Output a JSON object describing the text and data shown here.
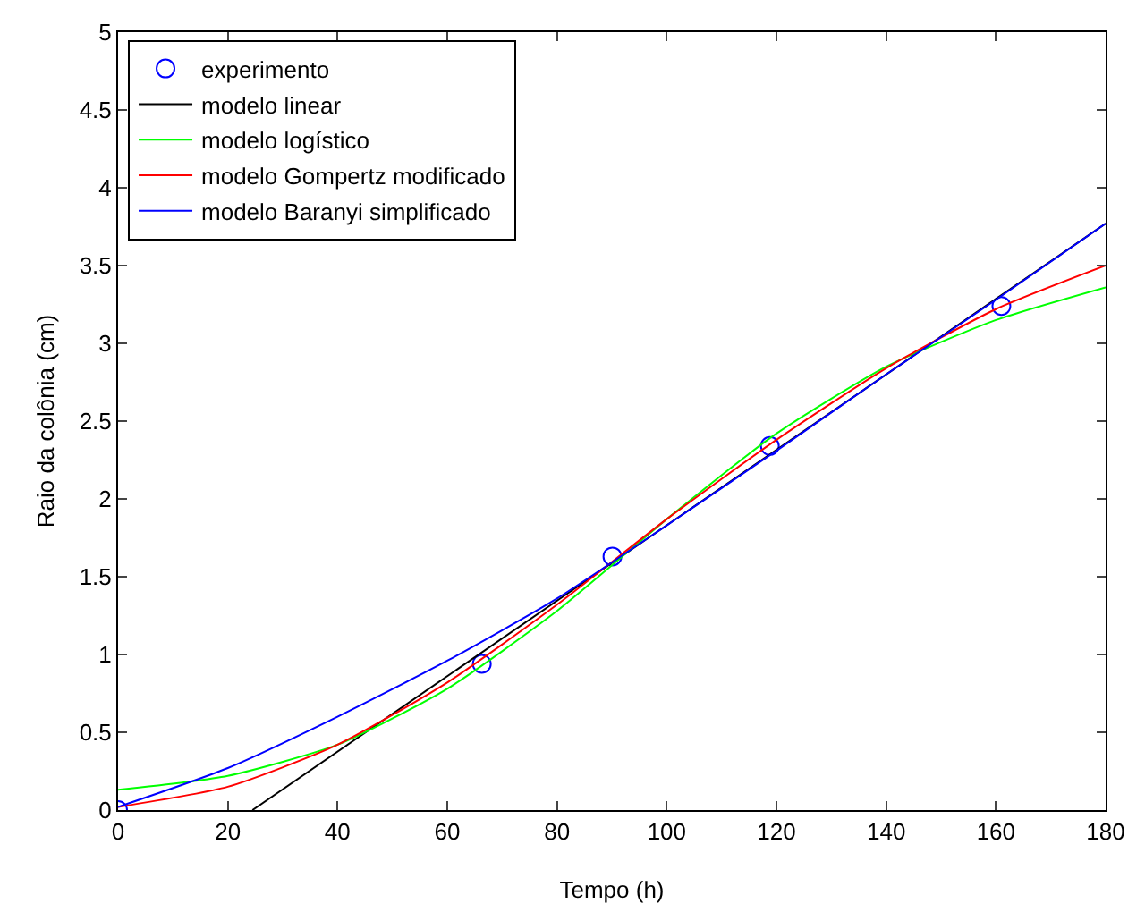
{
  "chart_data": {
    "type": "line",
    "xlabel": "Tempo (h)",
    "ylabel": "Raio da colônia (cm)",
    "xlim": [
      0,
      180
    ],
    "ylim": [
      0,
      5
    ],
    "xticks": [
      0,
      20,
      40,
      60,
      80,
      100,
      120,
      140,
      160,
      180
    ],
    "yticks": [
      0,
      0.5,
      1,
      1.5,
      2,
      2.5,
      3,
      3.5,
      4,
      4.5,
      5
    ],
    "grid": false,
    "legend": "top left",
    "series": [
      {
        "name": "experimento",
        "type": "scatter",
        "marker": "circle",
        "color": "#0000ff",
        "x": [
          0,
          66.3,
          90.1,
          118.8,
          161
        ],
        "values": [
          0,
          0.94,
          1.63,
          2.34,
          3.24
        ]
      },
      {
        "name": "modelo linear",
        "color": "#000000",
        "x": [
          24.5,
          180
        ],
        "values": [
          0,
          3.77
        ]
      },
      {
        "name": "modelo logístico",
        "color": "#00ff00",
        "x": [
          0,
          20,
          40,
          60,
          80,
          100,
          120,
          140,
          160,
          180
        ],
        "values": [
          0.13,
          0.22,
          0.42,
          0.78,
          1.28,
          1.87,
          2.42,
          2.85,
          3.15,
          3.36
        ]
      },
      {
        "name": "modelo Gompertz modificado",
        "color": "#ff0000",
        "x": [
          0,
          20,
          40,
          60,
          80,
          100,
          120,
          140,
          160,
          180
        ],
        "values": [
          0.02,
          0.15,
          0.42,
          0.82,
          1.32,
          1.87,
          2.38,
          2.84,
          3.22,
          3.5
        ]
      },
      {
        "name": "modelo Baranyi simplificado",
        "color": "#0000ff",
        "x": [
          0,
          20,
          40,
          60,
          80,
          100,
          120,
          140,
          160,
          180
        ],
        "values": [
          0.02,
          0.27,
          0.6,
          0.96,
          1.36,
          1.83,
          2.31,
          2.8,
          3.28,
          3.77
        ]
      }
    ]
  }
}
